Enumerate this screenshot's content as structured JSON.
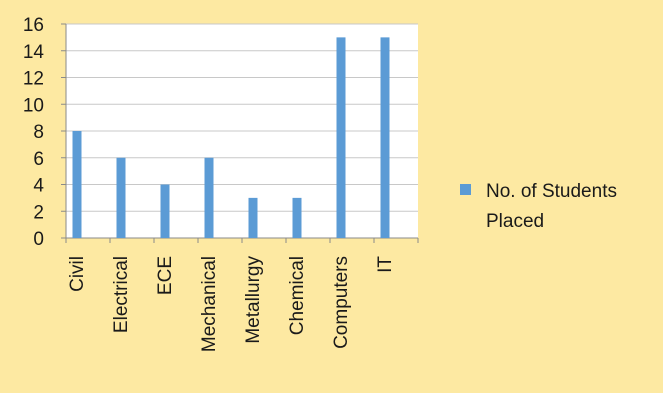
{
  "chart_data": {
    "type": "bar",
    "categories": [
      "Civil",
      "Electrical",
      "ECE",
      "Mechanical",
      "Metallurgy",
      "Chemical",
      "Computers",
      "IT"
    ],
    "series": [
      {
        "name": "No. of Students Placed",
        "values": [
          8,
          6,
          4,
          6,
          3,
          3,
          15,
          15
        ]
      }
    ],
    "yticks": [
      0,
      2,
      4,
      6,
      8,
      10,
      12,
      14,
      16
    ],
    "ylim": [
      0,
      16
    ],
    "grid": true,
    "legend_position": "right",
    "legend_lines": [
      "No. of Students",
      "Placed"
    ],
    "colors": {
      "background": "#fde9a2",
      "plot_area": "#ffffff",
      "bar": "#5b9bd5",
      "grid": "#c8c8c8",
      "axis": "#8a8a8a"
    }
  }
}
